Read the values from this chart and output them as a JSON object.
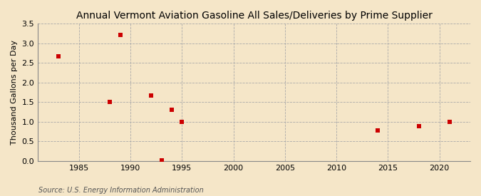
{
  "title": "Annual Vermont Aviation Gasoline All Sales/Deliveries by Prime Supplier",
  "ylabel": "Thousand Gallons per Day",
  "source": "Source: U.S. Energy Information Administration",
  "background_color": "#f5e6c8",
  "plot_bg_color": "#f5e6c8",
  "x_values": [
    1983,
    1988,
    1989,
    1992,
    1994,
    1995,
    2014,
    2018,
    2021
  ],
  "y_values": [
    2.67,
    1.5,
    3.2,
    1.67,
    1.3,
    1.0,
    0.77,
    0.88,
    1.0
  ],
  "x_values2": [
    1993
  ],
  "y_values2": [
    0.02
  ],
  "marker_color": "#cc0000",
  "marker_size": 18,
  "xlim": [
    1981,
    2023
  ],
  "ylim": [
    0,
    3.5
  ],
  "xticks": [
    1985,
    1990,
    1995,
    2000,
    2005,
    2010,
    2015,
    2020
  ],
  "yticks": [
    0.0,
    0.5,
    1.0,
    1.5,
    2.0,
    2.5,
    3.0,
    3.5
  ],
  "title_fontsize": 10,
  "label_fontsize": 8,
  "tick_fontsize": 8,
  "source_fontsize": 7,
  "grid_color": "#aaaaaa",
  "grid_linestyle": "--",
  "grid_linewidth": 0.6
}
